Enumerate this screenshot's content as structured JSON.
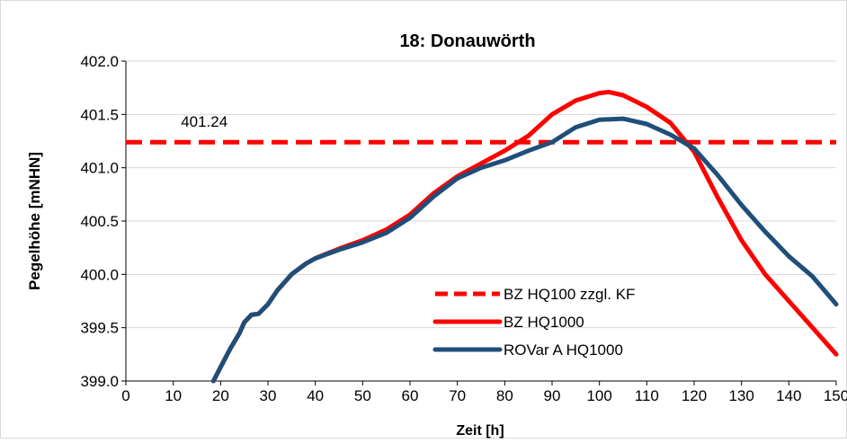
{
  "chart_data": {
    "type": "line",
    "title": "18: Donauwörth",
    "xlabel": "Zeit [h]",
    "ylabel": "Pegelhöhe [mNHN]",
    "xlim": [
      0,
      150
    ],
    "ylim": [
      399.0,
      402.0
    ],
    "x_ticks": [
      0,
      10,
      20,
      30,
      40,
      50,
      60,
      70,
      80,
      90,
      100,
      110,
      120,
      130,
      140,
      150
    ],
    "x_tick_labels": [
      "0",
      "10",
      "20",
      "30",
      "40",
      "50",
      "60",
      "70",
      "80",
      "90",
      "100",
      "110",
      "120",
      "130",
      "140",
      "150"
    ],
    "y_ticks": [
      399.0,
      399.5,
      400.0,
      400.5,
      401.0,
      401.5,
      402.0
    ],
    "y_tick_labels": [
      "399.0",
      "399.5",
      "400.0",
      "400.5",
      "401.0",
      "401.5",
      "402.0"
    ],
    "grid": "horizontal",
    "legend_position": "bottom-right",
    "annotation": {
      "text": "401.24",
      "x": 12,
      "y": 401.24
    },
    "series": [
      {
        "name": "BZ HQ100 zzgl. KF",
        "color": "#ff0000",
        "dash": true,
        "x": [
          0,
          150
        ],
        "y": [
          401.24,
          401.24
        ]
      },
      {
        "name": "BZ HQ1000",
        "color": "#ff0000",
        "dash": false,
        "x": [
          18.5,
          20,
          22,
          24,
          25,
          26.5,
          28,
          30,
          32,
          35,
          38,
          40,
          45,
          50,
          55,
          60,
          65,
          70,
          75,
          80,
          85,
          90,
          95,
          100,
          102,
          105,
          110,
          115,
          120,
          125,
          130,
          135,
          140,
          145,
          150
        ],
        "y": [
          399.0,
          399.13,
          399.3,
          399.45,
          399.55,
          399.62,
          399.63,
          399.72,
          399.85,
          400.0,
          400.1,
          400.15,
          400.24,
          400.32,
          400.42,
          400.56,
          400.76,
          400.92,
          401.04,
          401.16,
          401.3,
          401.5,
          401.63,
          401.7,
          401.71,
          401.68,
          401.57,
          401.42,
          401.15,
          400.72,
          400.32,
          400.0,
          399.75,
          399.5,
          399.25
        ]
      },
      {
        "name": "ROVar A HQ1000",
        "color": "#1f4e79",
        "dash": false,
        "x": [
          18.5,
          20,
          22,
          24,
          25,
          26.5,
          28,
          30,
          32,
          35,
          38,
          40,
          45,
          50,
          55,
          60,
          65,
          70,
          75,
          80,
          85,
          90,
          95,
          100,
          105,
          110,
          115,
          120,
          125,
          130,
          135,
          140,
          145,
          150
        ],
        "y": [
          399.0,
          399.13,
          399.3,
          399.45,
          399.55,
          399.62,
          399.63,
          399.72,
          399.85,
          400.0,
          400.1,
          400.15,
          400.23,
          400.3,
          400.39,
          400.53,
          400.73,
          400.9,
          401.0,
          401.07,
          401.16,
          401.24,
          401.38,
          401.45,
          401.46,
          401.41,
          401.31,
          401.18,
          400.93,
          400.65,
          400.4,
          400.17,
          399.98,
          399.72
        ]
      }
    ]
  }
}
